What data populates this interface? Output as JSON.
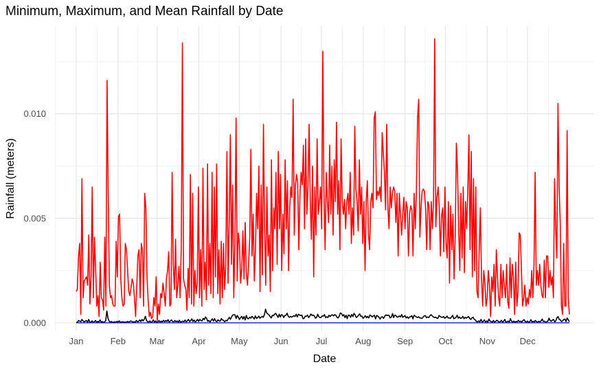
{
  "chart_data": {
    "type": "line",
    "title": "Minimum, Maximum, and Mean Rainfall by Date",
    "xlabel": "Date",
    "ylabel": "Rainfall (meters)",
    "x_tick_labels": [
      "Jan",
      "Feb",
      "Mar",
      "Apr",
      "May",
      "Jun",
      "Jul",
      "Aug",
      "Sep",
      "Oct",
      "Nov",
      "Dec"
    ],
    "y_tick_labels": [
      "0.000",
      "0.005",
      "0.010"
    ],
    "y_ticks": [
      0,
      0.005,
      0.01
    ],
    "ylim": [
      -0.0004,
      0.0142
    ],
    "xlim": [
      "Dec 26",
      "Jan 13 (next year)"
    ],
    "grid": true,
    "legend": "none",
    "series": [
      {
        "color": "#ff0000",
        "role": "maximum",
        "values": [
          0.0015,
          0.0016,
          0.0032,
          0.0038,
          0.0004,
          0.0069,
          0.0012,
          0.002,
          0.0021,
          0.0022,
          0.0018,
          0.0042,
          0.0009,
          0.0022,
          0.0065,
          0.0012,
          0.0041,
          0.0026,
          0.0008,
          0.0013,
          0.0003,
          0.0029,
          0.0012,
          0.0011,
          0.0006,
          0.0041,
          0.0008,
          0.0116,
          0.0062,
          0.0018,
          0.0012,
          0.0013,
          0.0009,
          0.0008,
          0.0008,
          0.0039,
          0.0022,
          0.0051,
          0.0052,
          0.0021,
          0.0012,
          0.0008,
          0.0009,
          0.0038,
          0.0035,
          0.0025,
          0.0015,
          0.0013,
          0.0017,
          0.0021,
          0.0019,
          0.0012,
          0.0003,
          0.0017,
          0.0032,
          0.0035,
          0.0012,
          0.0038,
          0.0035,
          0.0008,
          0.0062,
          0.0055,
          0.0022,
          0.0011,
          0.0003,
          0.0005,
          0.0002,
          0.0003,
          0.0012,
          0.0008,
          0.0022,
          0.0001,
          0.0009,
          0.0004,
          0.0014,
          0.0012,
          0.0019,
          0.0014,
          0.0008,
          0.0021,
          0.0025,
          0.0034,
          0.0008,
          0.0009,
          0.0072,
          0.0028,
          0.0016,
          0.004,
          0.0012,
          0.0018,
          0.0027,
          0.0012,
          0.0036,
          0.0134,
          0.0021,
          0.0018,
          0.0016,
          0.0006,
          0.0026,
          0.0012,
          0.0071,
          0.0009,
          0.0062,
          0.0008,
          0.0025,
          0.0014,
          0.0019,
          0.0065,
          0.0012,
          0.0035,
          0.0008,
          0.0074,
          0.0016,
          0.0029,
          0.0011,
          0.0076,
          0.0018,
          0.0038,
          0.0014,
          0.0072,
          0.0012,
          0.0065,
          0.0022,
          0.0076,
          0.0014,
          0.0035,
          0.0009,
          0.0039,
          0.0012,
          0.0038,
          0.0016,
          0.0028,
          0.0082,
          0.0019,
          0.0048,
          0.009,
          0.0028,
          0.0066,
          0.0012,
          0.0038,
          0.0098,
          0.002,
          0.0043,
          0.0038,
          0.0019,
          0.0026,
          0.0044,
          0.0021,
          0.0048,
          0.0024,
          0.0018,
          0.0028,
          0.0041,
          0.0083,
          0.0032,
          0.0052,
          0.002,
          0.0035,
          0.0062,
          0.0045,
          0.0075,
          0.0015,
          0.0066,
          0.0023,
          0.0095,
          0.0045,
          0.0018,
          0.0065,
          0.0032,
          0.0042,
          0.0015,
          0.0078,
          0.0025,
          0.0055,
          0.0045,
          0.0072,
          0.0028,
          0.0082,
          0.0045,
          0.0071,
          0.0025,
          0.0052,
          0.0033,
          0.0078,
          0.0045,
          0.0068,
          0.0025,
          0.0055,
          0.0065,
          0.006,
          0.0107,
          0.0042,
          0.0066,
          0.0071,
          0.0067,
          0.0035,
          0.0062,
          0.0072,
          0.0066,
          0.0085,
          0.0045,
          0.0088,
          0.0052,
          0.0065,
          0.0095,
          0.0058,
          0.004,
          0.0075,
          0.0022,
          0.0065,
          0.0042,
          0.0088,
          0.0052,
          0.0058,
          0.0065,
          0.0045,
          0.013,
          0.0062,
          0.0035,
          0.0072,
          0.0058,
          0.0048,
          0.0085,
          0.0052,
          0.0075,
          0.0042,
          0.0078,
          0.0058,
          0.0096,
          0.0052,
          0.0068,
          0.0035,
          0.0088,
          0.0058,
          0.0052,
          0.0059,
          0.0045,
          0.0058,
          0.0062,
          0.0052,
          0.0072,
          0.0038,
          0.0055,
          0.0042,
          0.0094,
          0.0064,
          0.0058,
          0.0044,
          0.0078,
          0.0052,
          0.0065,
          0.0038,
          0.0058,
          0.0025,
          0.0058,
          0.0068,
          0.0042,
          0.0035,
          0.0058,
          0.0062,
          0.0055,
          0.0098,
          0.0101,
          0.0059,
          0.0063,
          0.0061,
          0.0065,
          0.0058,
          0.0091,
          0.0081,
          0.0072,
          0.0054,
          0.0095,
          0.0055,
          0.0045,
          0.0065,
          0.0055,
          0.0062,
          0.0065,
          0.0063,
          0.0048,
          0.0062,
          0.0032,
          0.0062,
          0.0052,
          0.0042,
          0.0052,
          0.006,
          0.0045,
          0.0058,
          0.0055,
          0.0032,
          0.0052,
          0.0056,
          0.0054,
          0.0032,
          0.0062,
          0.0045,
          0.0064,
          0.0098,
          0.0107,
          0.0041,
          0.0055,
          0.0063,
          0.0064,
          0.0063,
          0.0055,
          0.0035,
          0.0058,
          0.0056,
          0.0035,
          0.0058,
          0.0045,
          0.0059,
          0.0136,
          0.0046,
          0.006,
          0.0065,
          0.0055,
          0.0032,
          0.0051,
          0.0055,
          0.0034,
          0.0065,
          0.0038,
          0.0031,
          0.0058,
          0.0019,
          0.0056,
          0.0035,
          0.0052,
          0.0021,
          0.0042,
          0.0086,
          0.0072,
          0.0045,
          0.0025,
          0.0062,
          0.0031,
          0.0065,
          0.0024,
          0.0058,
          0.0045,
          0.0063,
          0.009,
          0.0035,
          0.0082,
          0.0022,
          0.0069,
          0.0025,
          0.0065,
          0.0015,
          0.0012,
          0.0035,
          0.0055,
          0.0022,
          0.0008,
          0.0025,
          0.0019,
          0.0008,
          0.0012,
          0.0025,
          0.0018,
          0.0003,
          0.0022,
          0.0015,
          0.0028,
          0.0008,
          0.0035,
          0.0022,
          0.0012,
          0.0008,
          0.0028,
          0.0012,
          0.0025,
          0.0018,
          0.0012,
          0.0028,
          0.001,
          0.0007,
          0.0031,
          0.0012,
          0.0028,
          0.0022,
          0.0004,
          0.0029,
          0.0008,
          0.0015,
          0.0043,
          0.0042,
          0.0025,
          0.0008,
          0.0012,
          0.0018,
          0.0008,
          0.0012,
          0.0009,
          0.0016,
          0.0012,
          0.0025,
          0.0012,
          0.0028,
          0.0072,
          0.0018,
          0.0025,
          0.0018,
          0.0028,
          0.0018,
          0.0013,
          0.0012,
          0.003,
          0.0012,
          0.0032,
          0.0032,
          0.0017,
          0.0025,
          0.0018,
          0.0022,
          0.0012,
          0.0069,
          0.0045,
          0.0031,
          0.0105,
          0.0065,
          0.0048,
          0.0008,
          0.0004,
          0.0038,
          0.0008,
          0.0008,
          0.0092,
          0.0012,
          0.0004
        ]
      },
      {
        "color": "#000000",
        "role": "mean",
        "values": [
          3e-05,
          2e-05,
          0.00011,
          8e-05,
          5e-05,
          0.00016,
          9e-05,
          4e-05,
          8e-05,
          0.00011,
          3e-05,
          0.00016,
          2e-05,
          4e-05,
          9e-05,
          2e-05,
          5e-05,
          0.00011,
          2e-05,
          7e-05,
          3e-05,
          0.00014,
          3e-05,
          6e-05,
          2e-05,
          4e-05,
          0.0001,
          0.00057,
          0.00022,
          8e-05,
          3e-05,
          6e-05,
          2e-05,
          3e-05,
          5e-05,
          2e-05,
          7e-05,
          4e-05,
          9e-05,
          2e-05,
          4e-05,
          5e-05,
          3e-05,
          4e-05,
          2e-05,
          6e-05,
          4e-05,
          5e-05,
          9e-05,
          7e-05,
          3e-05,
          5e-05,
          3e-05,
          0.00011,
          5e-05,
          7e-05,
          0.00014,
          6e-05,
          0.00016,
          9e-05,
          0.00017,
          0.00031,
          0.00011,
          5e-05,
          4e-05,
          9e-05,
          2e-05,
          5e-05,
          0.00014,
          3e-05,
          9e-05,
          2e-05,
          4e-05,
          0.00011,
          3e-05,
          8e-05,
          4e-05,
          0.00012,
          5e-05,
          0.00011,
          6e-05,
          0.00015,
          3e-05,
          8e-05,
          0.00014,
          6e-05,
          4e-05,
          0.00011,
          5e-05,
          9e-05,
          3e-05,
          0.00012,
          2e-05,
          6e-05,
          8e-05,
          5e-05,
          0.00013,
          4e-05,
          0.0001,
          0.00016,
          6e-05,
          0.00011,
          0.00019,
          6e-05,
          0.00013,
          4e-05,
          9e-05,
          0.00016,
          7e-05,
          0.00016,
          0.00011,
          9e-05,
          0.00021,
          0.00015,
          0.00028,
          0.00021,
          7e-05,
          0.00011,
          4e-05,
          0.00012,
          0.00019,
          8e-05,
          0.0002,
          9e-05,
          5e-05,
          0.00014,
          9e-05,
          8e-05,
          0.0002,
          0.00014,
          0.00011,
          5e-05,
          0.00012,
          9e-05,
          0.00018,
          0.00026,
          0.00017,
          0.00028,
          0.00037,
          0.00039,
          0.00038,
          0.00021,
          0.00035,
          0.00026,
          0.00016,
          0.00025,
          0.00031,
          0.00018,
          0.0003,
          0.00014,
          0.00035,
          0.00021,
          0.00019,
          0.00027,
          0.00022,
          0.00031,
          0.00026,
          0.00018,
          0.00033,
          0.00021,
          0.00025,
          0.00032,
          0.00022,
          0.00026,
          0.00031,
          0.00026,
          0.0004,
          0.00065,
          0.00047,
          0.00042,
          0.00038,
          0.0003,
          0.00023,
          0.00036,
          0.00034,
          0.00042,
          0.00045,
          0.00036,
          0.00026,
          0.00041,
          0.00028,
          0.00039,
          0.00037,
          0.00025,
          0.00035,
          0.00036,
          0.00046,
          0.00031,
          0.00026,
          0.00031,
          0.00027,
          0.0003,
          0.00034,
          0.0003,
          0.00041,
          0.00028,
          0.00041,
          0.00037,
          0.00035,
          0.00037,
          0.0002,
          0.00021,
          0.00032,
          0.00031,
          0.00037,
          0.00025,
          0.00032,
          0.00042,
          0.00035,
          0.00037,
          0.00033,
          0.00022,
          0.00026,
          0.00041,
          0.00029,
          0.00025,
          0.00026,
          0.00033,
          0.00032,
          0.00039,
          0.00024,
          0.00029,
          0.00025,
          0.00036,
          0.0003,
          0.00037,
          0.00038,
          0.00033,
          0.00039,
          0.00036,
          0.00026,
          0.00023,
          0.00032,
          0.00047,
          0.00044,
          0.00033,
          0.00039,
          0.00025,
          0.00036,
          0.0002,
          0.00037,
          0.00036,
          0.00026,
          0.0004,
          0.0003,
          0.00045,
          0.00038,
          0.00025,
          0.00029,
          0.00036,
          0.00043,
          0.00031,
          0.00032,
          0.00021,
          0.00027,
          0.00034,
          0.00024,
          0.00031,
          0.00023,
          0.00037,
          0.00034,
          0.00028,
          0.00033,
          0.00036,
          0.00019,
          0.00035,
          0.00032,
          0.00027,
          0.00018,
          0.00027,
          0.00029,
          0.00021,
          0.0003,
          0.00038,
          0.00035,
          0.00037,
          0.00035,
          0.00023,
          0.00028,
          0.00044,
          0.00025,
          0.00037,
          0.00034,
          0.00027,
          0.00028,
          0.00033,
          0.00028,
          0.0004,
          0.00026,
          0.00031,
          0.00034,
          0.00023,
          0.00029,
          0.00021,
          0.00028,
          0.00029,
          0.00034,
          0.00019,
          0.00036,
          0.00032,
          0.00028,
          0.00025,
          0.00029,
          0.00023,
          0.00023,
          0.00021,
          0.00028,
          0.00033,
          0.00034,
          0.00024,
          0.00028,
          0.00025,
          0.00034,
          0.00039,
          0.00033,
          0.00028,
          0.00025,
          0.00027,
          0.00023,
          0.00021,
          0.00035,
          0.0003,
          0.00027,
          0.00026,
          0.0003,
          0.00022,
          0.00025,
          0.00032,
          0.00023,
          0.00024,
          0.00021,
          0.00028,
          0.00035,
          0.0002,
          0.00022,
          0.00026,
          0.00036,
          0.00022,
          0.00028,
          0.00021,
          0.00023,
          0.00031,
          0.0002,
          0.00026,
          0.00022,
          0.00026,
          0.0003,
          0.00021,
          0.00016,
          0.00023,
          0.00027,
          0.00017,
          0.00014,
          6e-05,
          5e-05,
          9e-05,
          4e-05,
          0.00016,
          4e-05,
          6e-05,
          0.00014,
          3e-05,
          9e-05,
          3e-05,
          0.00018,
          8e-05,
          6e-05,
          3e-05,
          0.00011,
          3e-05,
          7e-05,
          0.00012,
          8e-05,
          3e-05,
          5e-05,
          0.00012,
          3e-05,
          7e-05,
          0.00016,
          3e-05,
          5e-05,
          8e-05,
          3e-05,
          0.0002,
          7e-05,
          3e-05,
          8e-05,
          3e-05,
          6e-05,
          5e-05,
          0.00012,
          5e-05,
          8e-05,
          3e-05,
          0.00011,
          0.00015,
          6e-05,
          4e-05,
          8e-05,
          3e-05,
          5e-05,
          0.00015,
          4e-05,
          7e-05,
          4e-05,
          0.00011,
          5e-05,
          3e-05,
          7e-05,
          4e-05,
          9e-05,
          0.00018,
          6e-05,
          8e-05,
          3e-05,
          5e-05,
          8e-05,
          0.00022,
          0.00011,
          7e-05,
          0.00013,
          0.00016,
          5e-05,
          9e-05,
          0.00024,
          0.0003,
          0.00016,
          0.00014,
          6e-05,
          9e-05,
          0.00016,
          0.00018,
          6e-05,
          0.00023,
          0.00014,
          5e-05
        ]
      },
      {
        "color": "#0000ff",
        "role": "minimum",
        "values": [
          0,
          0
        ]
      }
    ]
  }
}
